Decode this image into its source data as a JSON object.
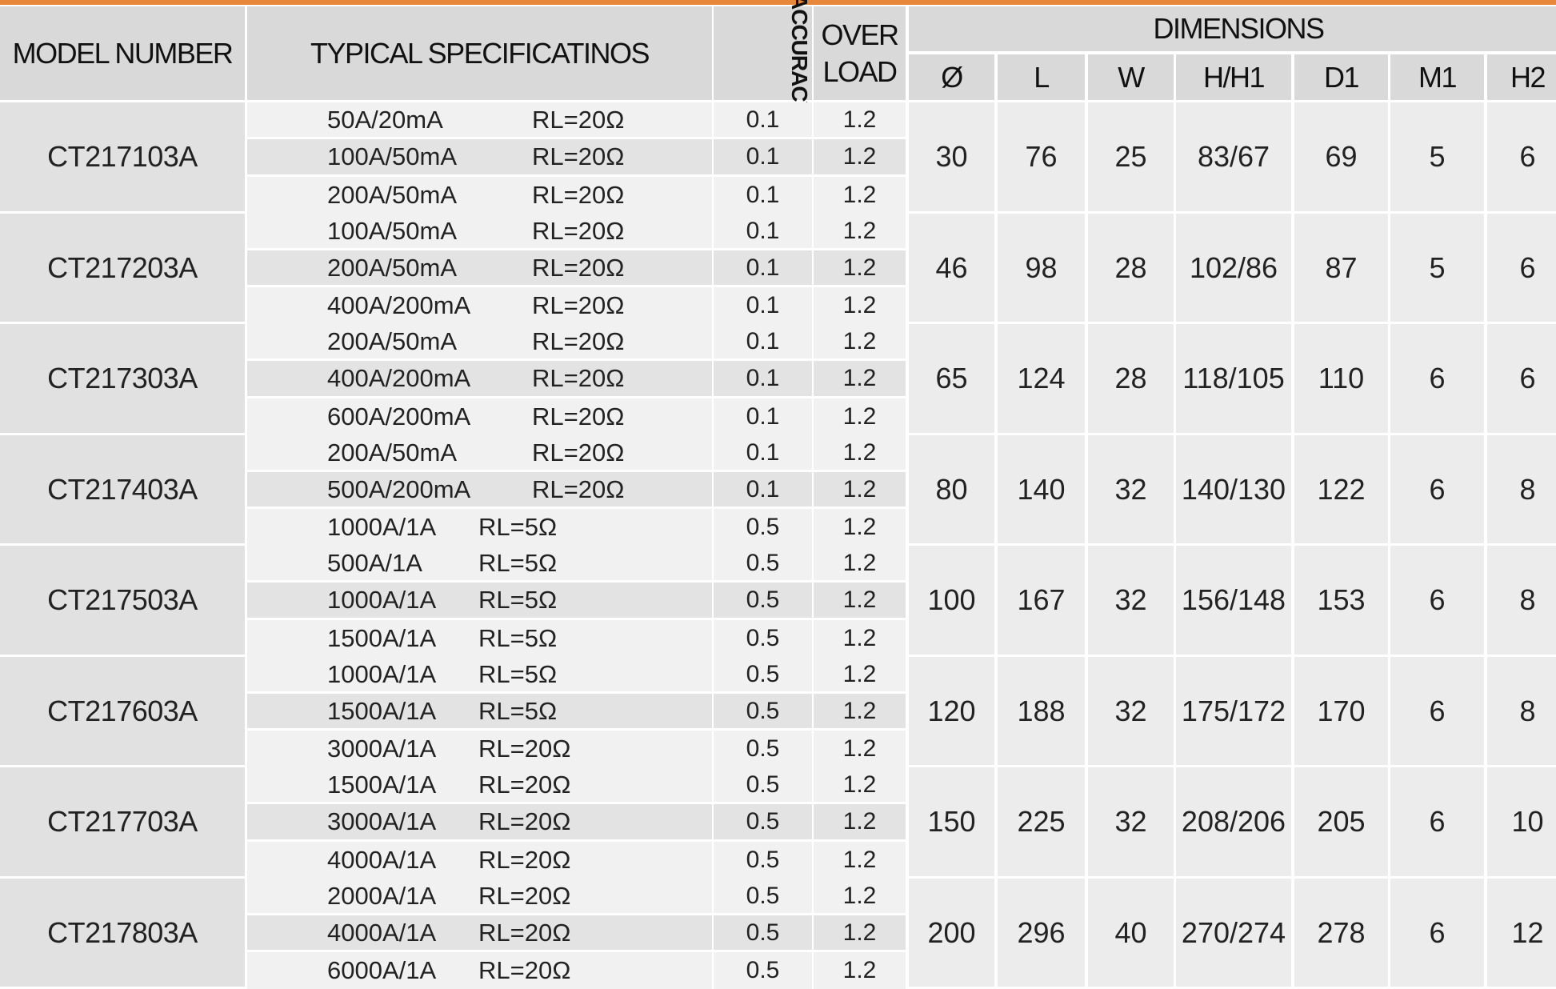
{
  "accent_color": "#e8873a",
  "header": {
    "model": "MODEL NUMBER",
    "specs": "TYPICAL SPECIFICATINOS",
    "accuracy": "ACCURACY",
    "overload": "OVER LOAD",
    "dimensions": "DIMENSIONS",
    "dim_cols": [
      "Ø",
      "L",
      "W",
      "H/H1",
      "D1",
      "M1",
      "H2"
    ]
  },
  "rows": [
    {
      "model": "CT217103A",
      "specs": [
        {
          "cur": "50A/20mA",
          "rl": "RL=20Ω",
          "acc": "0.1",
          "ol": "1.2"
        },
        {
          "cur": "100A/50mA",
          "rl": "RL=20Ω",
          "acc": "0.1",
          "ol": "1.2"
        },
        {
          "cur": "200A/50mA",
          "rl": "RL=20Ω",
          "acc": "0.1",
          "ol": "1.2"
        }
      ],
      "dims": [
        "30",
        "76",
        "25",
        "83/67",
        "69",
        "5",
        "6"
      ]
    },
    {
      "model": "CT217203A",
      "specs": [
        {
          "cur": "100A/50mA",
          "rl": "RL=20Ω",
          "acc": "0.1",
          "ol": "1.2"
        },
        {
          "cur": "200A/50mA",
          "rl": "RL=20Ω",
          "acc": "0.1",
          "ol": "1.2"
        },
        {
          "cur": "400A/200mA",
          "rl": "RL=20Ω",
          "acc": "0.1",
          "ol": "1.2"
        }
      ],
      "dims": [
        "46",
        "98",
        "28",
        "102/86",
        "87",
        "5",
        "6"
      ]
    },
    {
      "model": "CT217303A",
      "specs": [
        {
          "cur": "200A/50mA",
          "rl": "RL=20Ω",
          "acc": "0.1",
          "ol": "1.2"
        },
        {
          "cur": "400A/200mA",
          "rl": "RL=20Ω",
          "acc": "0.1",
          "ol": "1.2"
        },
        {
          "cur": "600A/200mA",
          "rl": "RL=20Ω",
          "acc": "0.1",
          "ol": "1.2"
        }
      ],
      "dims": [
        "65",
        "124",
        "28",
        "118/105",
        "110",
        "6",
        "6"
      ]
    },
    {
      "model": "CT217403A",
      "specs": [
        {
          "cur": "200A/50mA",
          "rl": "RL=20Ω",
          "acc": "0.1",
          "ol": "1.2"
        },
        {
          "cur": "500A/200mA",
          "rl": "RL=20Ω",
          "acc": "0.1",
          "ol": "1.2"
        },
        {
          "cur": "1000A/1A",
          "rl": "RL=5Ω",
          "acc": "0.5",
          "ol": "1.2"
        }
      ],
      "dims": [
        "80",
        "140",
        "32",
        "140/130",
        "122",
        "6",
        "8"
      ]
    },
    {
      "model": "CT217503A",
      "specs": [
        {
          "cur": "500A/1A",
          "rl": "RL=5Ω",
          "acc": "0.5",
          "ol": "1.2"
        },
        {
          "cur": "1000A/1A",
          "rl": "RL=5Ω",
          "acc": "0.5",
          "ol": "1.2"
        },
        {
          "cur": "1500A/1A",
          "rl": "RL=5Ω",
          "acc": "0.5",
          "ol": "1.2"
        }
      ],
      "dims": [
        "100",
        "167",
        "32",
        "156/148",
        "153",
        "6",
        "8"
      ]
    },
    {
      "model": "CT217603A",
      "specs": [
        {
          "cur": "1000A/1A",
          "rl": "RL=5Ω",
          "acc": "0.5",
          "ol": "1.2"
        },
        {
          "cur": "1500A/1A",
          "rl": "RL=5Ω",
          "acc": "0.5",
          "ol": "1.2"
        },
        {
          "cur": "3000A/1A",
          "rl": "RL=20Ω",
          "acc": "0.5",
          "ol": "1.2"
        }
      ],
      "dims": [
        "120",
        "188",
        "32",
        "175/172",
        "170",
        "6",
        "8"
      ]
    },
    {
      "model": "CT217703A",
      "specs": [
        {
          "cur": "1500A/1A",
          "rl": "RL=20Ω",
          "acc": "0.5",
          "ol": "1.2"
        },
        {
          "cur": "3000A/1A",
          "rl": "RL=20Ω",
          "acc": "0.5",
          "ol": "1.2"
        },
        {
          "cur": "4000A/1A",
          "rl": "RL=20Ω",
          "acc": "0.5",
          "ol": "1.2"
        }
      ],
      "dims": [
        "150",
        "225",
        "32",
        "208/206",
        "205",
        "6",
        "10"
      ]
    },
    {
      "model": "CT217803A",
      "specs": [
        {
          "cur": "2000A/1A",
          "rl": "RL=20Ω",
          "acc": "0.5",
          "ol": "1.2"
        },
        {
          "cur": "4000A/1A",
          "rl": "RL=20Ω",
          "acc": "0.5",
          "ol": "1.2"
        },
        {
          "cur": "6000A/1A",
          "rl": "RL=20Ω",
          "acc": "0.5",
          "ol": "1.2"
        }
      ],
      "dims": [
        "200",
        "296",
        "40",
        "270/274",
        "278",
        "6",
        "12"
      ]
    }
  ]
}
